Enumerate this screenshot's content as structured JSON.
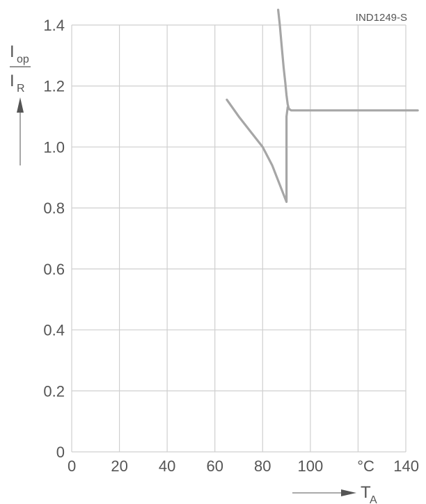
{
  "figure_code": "IND1249-S",
  "chart_data": {
    "type": "line",
    "ylabel_numerator": "I",
    "ylabel_numerator_sub": "op",
    "ylabel_denominator": "I",
    "ylabel_denominator_sub": "R",
    "xlabel": "T",
    "xlabel_sub": "A",
    "x_unit": "°C",
    "xlim": [
      0,
      140
    ],
    "ylim": [
      0,
      1.4
    ],
    "x_ticks": [
      0,
      20,
      40,
      60,
      80,
      100,
      140
    ],
    "x_tick_labels": [
      "0",
      "20",
      "40",
      "60",
      "80",
      "100",
      "140"
    ],
    "y_ticks": [
      0,
      0.2,
      0.4,
      0.6,
      0.8,
      1.0,
      1.2,
      1.4
    ],
    "y_tick_labels": [
      "0",
      "0.2",
      "0.4",
      "0.6",
      "0.8",
      "1.0",
      "1.2",
      "1.4"
    ],
    "grid": true,
    "series": [
      {
        "x": [
          65,
          70,
          75,
          80,
          84,
          87,
          89,
          90,
          90,
          90,
          90.5,
          91,
          92,
          100,
          120,
          145
        ],
        "y": [
          1.155,
          1.1,
          1.05,
          1.0,
          0.94,
          0.88,
          0.84,
          0.82,
          0.95,
          1.1,
          1.13,
          1.125,
          1.12,
          1.12,
          1.12,
          1.12
        ]
      },
      {
        "x": [
          86.5,
          87.2,
          88,
          88.8,
          89.5,
          90,
          90.5,
          91
        ],
        "y": [
          1.45,
          1.4,
          1.33,
          1.26,
          1.21,
          1.17,
          1.14,
          1.125
        ]
      }
    ]
  }
}
